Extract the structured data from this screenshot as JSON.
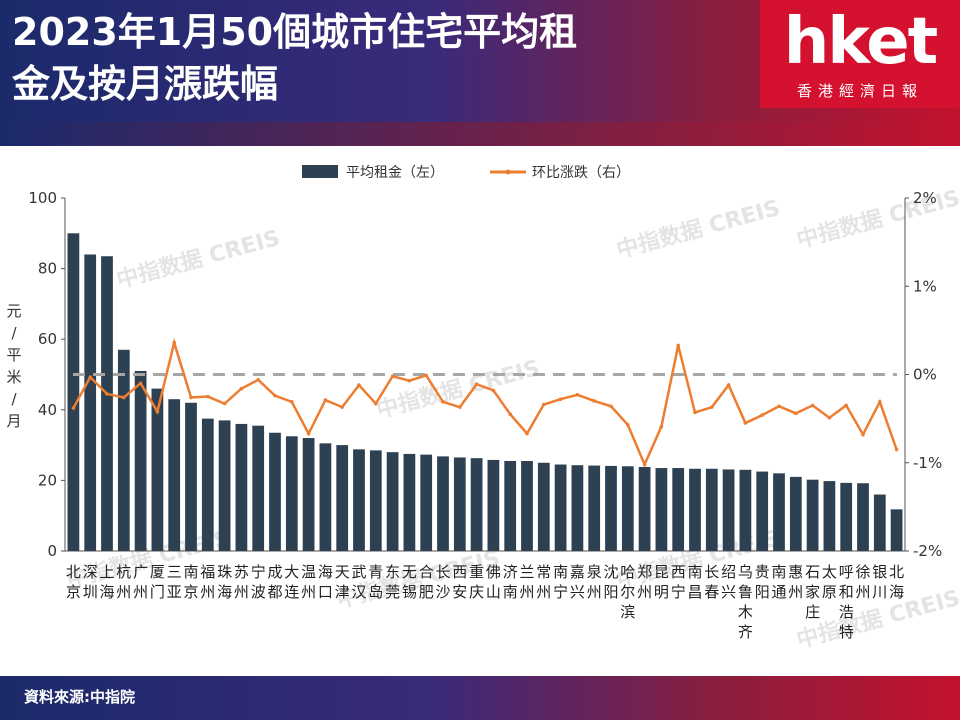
{
  "header": {
    "title_line1": "2023年1月50個城市住宅平均租",
    "title_line2": "金及按月漲跌幅"
  },
  "logo": {
    "brand": "hket",
    "sub": "香港經濟日報"
  },
  "watermark": "中指数据 CREIS",
  "footer": {
    "source": "資料來源:中指院"
  },
  "colors": {
    "bar": "#2e4152",
    "line": "#ed7d31",
    "zero_line": "#a6a6a6"
  },
  "chart_data": {
    "type": "bar",
    "legend": [
      "平均租金（左）",
      "环比涨跌（右）"
    ],
    "legend_position": "top",
    "ylabel": "元/平米/月",
    "y_left": {
      "lim": [
        0,
        100
      ],
      "ticks": [
        "0",
        "20",
        "40",
        "60",
        "80",
        "100"
      ]
    },
    "y_right": {
      "lim": [
        -2,
        2
      ],
      "ticks": [
        "-2%",
        "-1%",
        "0%",
        "1%",
        "2%"
      ]
    },
    "categories": [
      "北京",
      "深圳",
      "上海",
      "杭州",
      "广州",
      "厦门",
      "三亚",
      "南京",
      "福州",
      "珠海",
      "苏州",
      "宁波",
      "成都",
      "大连",
      "温州",
      "海口",
      "天津",
      "武汉",
      "青岛",
      "东莞",
      "无锡",
      "合肥",
      "长沙",
      "西安",
      "重庆",
      "佛山",
      "济南",
      "兰州",
      "常州",
      "南宁",
      "嘉兴",
      "泉州",
      "沈阳",
      "哈尔滨",
      "郑州",
      "昆明",
      "西宁",
      "南昌",
      "长春",
      "绍兴",
      "乌鲁木齐",
      "贵阳",
      "南通",
      "惠州",
      "石家庄",
      "太原",
      "呼和浩特",
      "徐州",
      "银川",
      "北海"
    ],
    "series": [
      {
        "name": "平均租金（左）",
        "axis": "left",
        "values": [
          90,
          84,
          83.5,
          57,
          51,
          46,
          43,
          42,
          37.5,
          37,
          36,
          35.5,
          33.5,
          32.5,
          32,
          30.5,
          30,
          28.8,
          28.5,
          28,
          27.5,
          27.3,
          26.8,
          26.5,
          26.3,
          25.8,
          25.5,
          25.5,
          25,
          24.5,
          24.3,
          24.2,
          24.1,
          24,
          23.8,
          23.5,
          23.5,
          23.3,
          23.3,
          23.1,
          23,
          22.5,
          22,
          21,
          20.2,
          19.8,
          19.3,
          19.2,
          16,
          11.8
        ]
      },
      {
        "name": "环比涨跌（右）",
        "axis": "right",
        "values": [
          -0.38,
          -0.03,
          -0.22,
          -0.26,
          -0.1,
          -0.42,
          0.36,
          -0.26,
          -0.25,
          -0.33,
          -0.16,
          -0.06,
          -0.24,
          -0.31,
          -0.67,
          -0.29,
          -0.37,
          -0.12,
          -0.33,
          -0.02,
          -0.07,
          -0.01,
          -0.31,
          -0.37,
          -0.11,
          -0.18,
          -0.45,
          -0.67,
          -0.34,
          -0.28,
          -0.23,
          -0.3,
          -0.36,
          -0.57,
          -1.02,
          -0.59,
          0.33,
          -0.43,
          -0.37,
          -0.12,
          -0.55,
          -0.46,
          -0.36,
          -0.44,
          -0.35,
          -0.49,
          -0.35,
          -0.68,
          -0.31,
          -0.85
        ]
      }
    ]
  }
}
